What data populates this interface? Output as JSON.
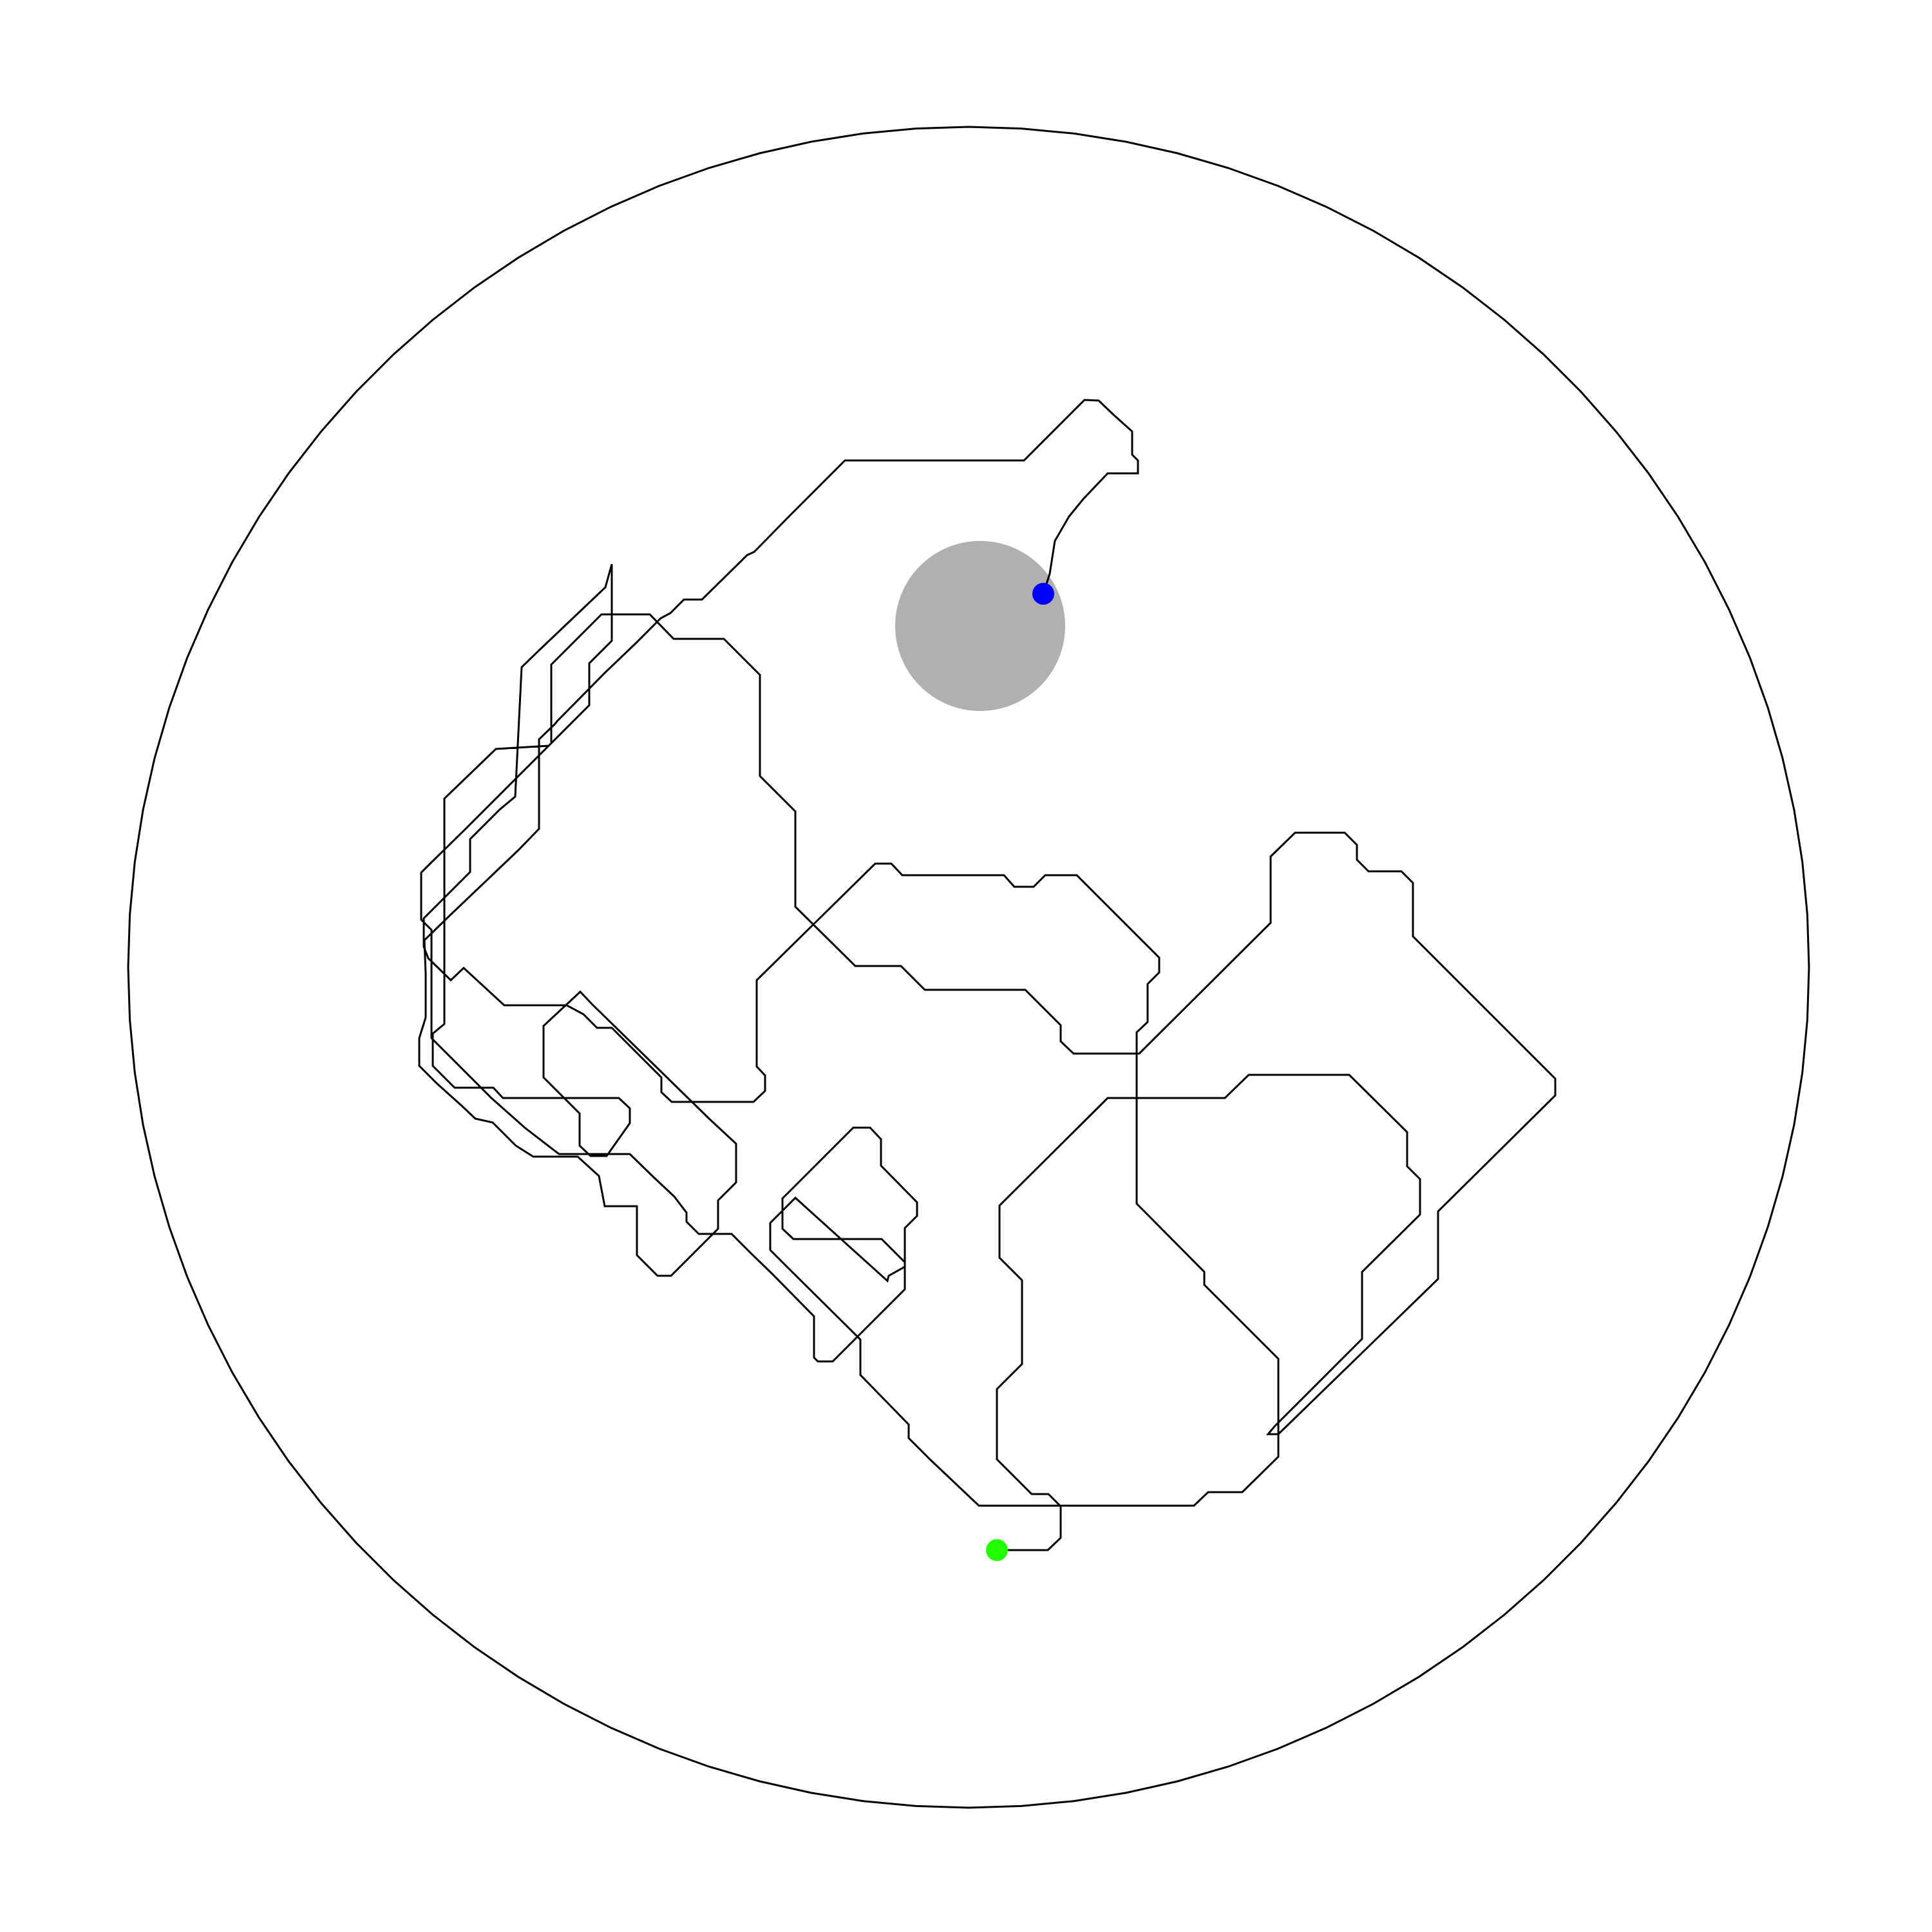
{
  "colors": {
    "background": "#ffffff",
    "boundary": "#000000",
    "trajectory": "#000000",
    "goal_region": "#b0b0b0",
    "start_marker": "#22ff00",
    "end_marker": "#0000ff"
  },
  "legend": [],
  "annotations": []
}
